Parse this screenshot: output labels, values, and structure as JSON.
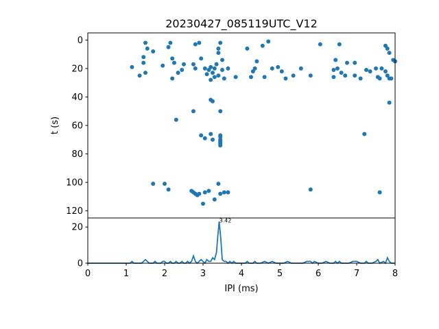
{
  "chart_data": [
    {
      "type": "scatter",
      "title": "20230427_085119UTC_V12",
      "xlabel": "",
      "ylabel": "t (s)",
      "xlim": [
        0,
        8
      ],
      "ylim": [
        125,
        -5
      ],
      "y_inverted": true,
      "yticks": [
        0,
        20,
        40,
        60,
        80,
        100,
        120
      ],
      "marker_color": "#1f77b4",
      "grid": false,
      "series": [
        {
          "points": [
            [
              1.15,
              19
            ],
            [
              1.35,
              25
            ],
            [
              1.45,
              16
            ],
            [
              1.45,
              12
            ],
            [
              1.5,
              23
            ],
            [
              1.5,
              2
            ],
            [
              1.55,
              6
            ],
            [
              1.7,
              8
            ],
            [
              1.95,
              18
            ],
            [
              2.1,
              5
            ],
            [
              2.15,
              2
            ],
            [
              2.2,
              13
            ],
            [
              2.25,
              16
            ],
            [
              2.35,
              23
            ],
            [
              2.45,
              21
            ],
            [
              2.5,
              17
            ],
            [
              2.2,
              27
            ],
            [
              2.75,
              17
            ],
            [
              2.8,
              3
            ],
            [
              2.8,
              20
            ],
            [
              2.9,
              2
            ],
            [
              2.95,
              13
            ],
            [
              3.05,
              20
            ],
            [
              3.1,
              24
            ],
            [
              3.2,
              19
            ],
            [
              3.25,
              23
            ],
            [
              3.3,
              20
            ],
            [
              3.35,
              17
            ],
            [
              3.4,
              6
            ],
            [
              3.4,
              9
            ],
            [
              3.45,
              2
            ],
            [
              3.5,
              14
            ],
            [
              3.5,
              21
            ],
            [
              3.55,
              27
            ],
            [
              3.65,
              20
            ],
            [
              3.3,
              26
            ],
            [
              3.2,
              28
            ],
            [
              3.4,
              25
            ],
            [
              3.15,
              21
            ],
            [
              3.85,
              26
            ],
            [
              4.15,
              6
            ],
            [
              4.25,
              26
            ],
            [
              4.3,
              22
            ],
            [
              4.35,
              20
            ],
            [
              4.4,
              15
            ],
            [
              4.55,
              4
            ],
            [
              4.6,
              26
            ],
            [
              4.7,
              1
            ],
            [
              4.8,
              20
            ],
            [
              4.95,
              19
            ],
            [
              5.05,
              22
            ],
            [
              5.15,
              27
            ],
            [
              5.35,
              25
            ],
            [
              5.55,
              20
            ],
            [
              5.8,
              25
            ],
            [
              6.05,
              3
            ],
            [
              6.4,
              26
            ],
            [
              6.4,
              21
            ],
            [
              6.45,
              14
            ],
            [
              6.5,
              20
            ],
            [
              6.55,
              3
            ],
            [
              6.6,
              23
            ],
            [
              6.7,
              25
            ],
            [
              6.75,
              16
            ],
            [
              6.95,
              16
            ],
            [
              6.95,
              25
            ],
            [
              7.1,
              27
            ],
            [
              7.25,
              21
            ],
            [
              7.35,
              22
            ],
            [
              7.5,
              20
            ],
            [
              7.55,
              26
            ],
            [
              7.6,
              27
            ],
            [
              7.65,
              20
            ],
            [
              7.75,
              4
            ],
            [
              7.75,
              22
            ],
            [
              7.8,
              6
            ],
            [
              7.8,
              25
            ],
            [
              7.85,
              9
            ],
            [
              7.85,
              27
            ],
            [
              7.95,
              14
            ],
            [
              8.0,
              15
            ],
            [
              7.9,
              27
            ],
            [
              2.75,
              50
            ],
            [
              3.2,
              42
            ],
            [
              3.25,
              43
            ],
            [
              3.45,
              50
            ],
            [
              2.3,
              56
            ],
            [
              2.95,
              67
            ],
            [
              3.05,
              69
            ],
            [
              3.2,
              66
            ],
            [
              3.25,
              70
            ],
            [
              3.45,
              67
            ],
            [
              3.45,
              68
            ],
            [
              3.45,
              70
            ],
            [
              3.45,
              71
            ],
            [
              3.45,
              72
            ],
            [
              3.45,
              73
            ],
            [
              3.45,
              74
            ],
            [
              7.2,
              66
            ],
            [
              7.85,
              44
            ],
            [
              1.7,
              101
            ],
            [
              2.0,
              101
            ],
            [
              2.1,
              105
            ],
            [
              2.7,
              106
            ],
            [
              2.75,
              107
            ],
            [
              2.8,
              108
            ],
            [
              2.85,
              109
            ],
            [
              2.9,
              108
            ],
            [
              3.0,
              115
            ],
            [
              3.05,
              107
            ],
            [
              3.15,
              106
            ],
            [
              3.3,
              112
            ],
            [
              3.4,
              101
            ],
            [
              3.45,
              108
            ],
            [
              3.55,
              107
            ],
            [
              3.65,
              107
            ],
            [
              5.8,
              105
            ],
            [
              7.6,
              107
            ]
          ]
        }
      ]
    },
    {
      "type": "line",
      "xlabel": "IPI (ms)",
      "ylabel": "",
      "xlim": [
        0,
        8
      ],
      "ylim": [
        0,
        25
      ],
      "xticks": [
        0,
        1,
        2,
        3,
        4,
        5,
        6,
        7,
        8
      ],
      "yticks": [
        0,
        20
      ],
      "line_color": "#1f77b4",
      "peak_annotation": {
        "x": 3.42,
        "label": "3.42"
      },
      "series": [
        {
          "x": [
            0,
            1.0,
            1.1,
            1.15,
            1.2,
            1.3,
            1.35,
            1.4,
            1.45,
            1.5,
            1.55,
            1.6,
            1.7,
            1.75,
            1.8,
            1.9,
            1.95,
            2.0,
            2.05,
            2.1,
            2.15,
            2.2,
            2.25,
            2.3,
            2.35,
            2.4,
            2.45,
            2.5,
            2.55,
            2.6,
            2.65,
            2.7,
            2.75,
            2.8,
            2.85,
            2.9,
            2.95,
            3.0,
            3.05,
            3.1,
            3.15,
            3.2,
            3.25,
            3.3,
            3.35,
            3.38,
            3.42,
            3.46,
            3.5,
            3.55,
            3.6,
            3.65,
            3.7,
            3.75,
            3.8,
            3.85,
            3.9,
            4.0,
            4.1,
            4.15,
            4.2,
            4.3,
            4.35,
            4.4,
            4.5,
            4.6,
            4.7,
            4.8,
            4.9,
            5.0,
            5.1,
            5.2,
            5.3,
            5.4,
            5.5,
            5.6,
            5.7,
            5.8,
            5.85,
            5.9,
            6.0,
            6.1,
            6.2,
            6.3,
            6.4,
            6.45,
            6.5,
            6.55,
            6.6,
            6.7,
            6.8,
            6.9,
            7.0,
            7.1,
            7.2,
            7.25,
            7.3,
            7.4,
            7.5,
            7.55,
            7.6,
            7.7,
            7.75,
            7.8,
            7.85,
            7.9,
            8.0
          ],
          "values": [
            0,
            0,
            0,
            1,
            0,
            0,
            0,
            0,
            1,
            2,
            1,
            0,
            0,
            1,
            0,
            0,
            1,
            1,
            0,
            0,
            1,
            0,
            0,
            1,
            0,
            0,
            1,
            0,
            0,
            1,
            0,
            1,
            4,
            1,
            0,
            1,
            2,
            1,
            0,
            2,
            1,
            1,
            3,
            2,
            6,
            14,
            23,
            14,
            2,
            1,
            1,
            0,
            1,
            0,
            1,
            0,
            0,
            0,
            0,
            1,
            0,
            0,
            1,
            0,
            0,
            1,
            0,
            1,
            0,
            0,
            0,
            1,
            0,
            0,
            0,
            0,
            1,
            1,
            0,
            1,
            0,
            0,
            1,
            0,
            0,
            1,
            0,
            1,
            0,
            0,
            0,
            1,
            1,
            0,
            0,
            1,
            0,
            0,
            1,
            2,
            0,
            1,
            0,
            3,
            1,
            0,
            0
          ]
        }
      ]
    }
  ]
}
